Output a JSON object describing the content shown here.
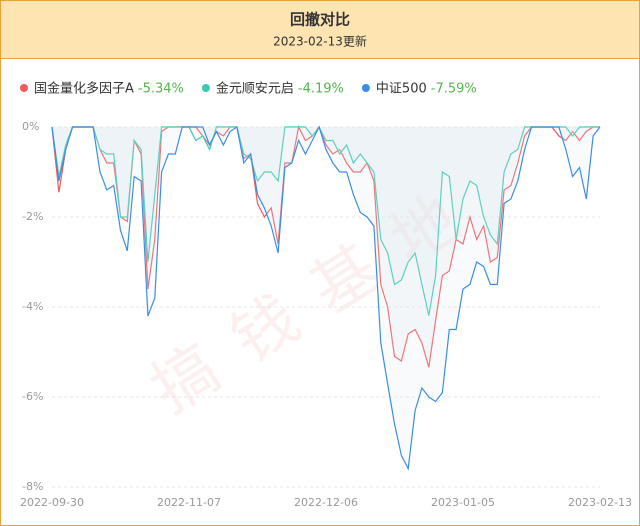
{
  "chart_data": {
    "type": "line",
    "title": "回撤对比",
    "subtitle": "2023-02-13更新",
    "watermark": "搞钱基地",
    "categories": [
      "2022-09-30",
      null,
      null,
      null,
      null,
      null,
      null,
      null,
      null,
      null,
      null,
      null,
      null,
      null,
      null,
      null,
      null,
      null,
      null,
      null,
      "2022-11-07",
      null,
      null,
      null,
      null,
      null,
      null,
      null,
      null,
      null,
      null,
      null,
      null,
      null,
      null,
      null,
      null,
      null,
      null,
      null,
      "2022-12-06",
      null,
      null,
      null,
      null,
      null,
      null,
      null,
      null,
      null,
      null,
      null,
      null,
      null,
      null,
      null,
      null,
      null,
      null,
      null,
      "2023-01-05",
      null,
      null,
      null,
      null,
      null,
      null,
      null,
      null,
      null,
      null,
      null,
      null,
      null,
      null,
      null,
      null,
      null,
      null,
      null,
      "2023-02-13"
    ],
    "ylim": [
      -8,
      0
    ],
    "yticks": [
      {
        "value": 0,
        "label": "0%"
      },
      {
        "value": -2,
        "label": "-2%"
      },
      {
        "value": -4,
        "label": "-4%"
      },
      {
        "value": -6,
        "label": "-6%"
      },
      {
        "value": -8,
        "label": "-8%"
      }
    ],
    "grid": true,
    "series": [
      {
        "name": "国金量化多因子A",
        "legend_value": "-5.34%",
        "color": "#f0585a",
        "values": [
          0,
          -1.45,
          -0.5,
          0,
          0,
          0,
          0,
          -0.5,
          -0.8,
          -0.8,
          -2.0,
          -2.1,
          -0.3,
          -0.6,
          -3.6,
          -2.5,
          -0.1,
          0,
          0,
          0,
          0,
          0,
          -0.2,
          -0.4,
          -0.1,
          -0.2,
          0,
          0,
          -0.7,
          -0.6,
          -1.7,
          -2.0,
          -1.8,
          -2.6,
          -0.8,
          -0.8,
          0,
          -0.3,
          -0.2,
          0,
          -0.4,
          -0.6,
          -0.5,
          -0.8,
          -1.0,
          -1.0,
          -0.8,
          -1.2,
          -3.5,
          -4.0,
          -5.1,
          -5.2,
          -4.6,
          -4.5,
          -4.8,
          -5.34,
          -4.3,
          -3.3,
          -3.2,
          -2.5,
          -2.6,
          -2.0,
          -2.5,
          -2.2,
          -3.0,
          -2.9,
          -1.4,
          -1.3,
          -0.8,
          -0.2,
          0,
          0,
          0,
          0,
          -0.2,
          -0.3,
          -0.1,
          -0.3,
          -0.1,
          0,
          0
        ]
      },
      {
        "name": "金元顺安元启",
        "legend_value": "-4.19%",
        "color": "#3cc9b0",
        "values": [
          0,
          -1.1,
          -0.4,
          0,
          0,
          0,
          0,
          -0.5,
          -0.6,
          -0.6,
          -2.0,
          -2.0,
          -0.3,
          -0.5,
          -3.0,
          -1.5,
          0,
          0,
          0,
          0,
          0,
          -0.3,
          -0.2,
          -0.5,
          0,
          0,
          0,
          0,
          -0.6,
          -0.7,
          -1.2,
          -1.0,
          -1.0,
          -1.2,
          0,
          0,
          0,
          0,
          -0.2,
          0,
          -0.3,
          -0.3,
          -0.6,
          -0.4,
          -0.8,
          -0.6,
          -0.8,
          -1.0,
          -2.5,
          -2.8,
          -3.5,
          -3.4,
          -3.0,
          -2.8,
          -3.5,
          -4.19,
          -3.3,
          -1.0,
          -1.1,
          -2.5,
          -1.6,
          -1.2,
          -1.3,
          -2.0,
          -2.4,
          -2.6,
          -1.0,
          -0.6,
          -0.5,
          0,
          0,
          0,
          0,
          0,
          0,
          0,
          -0.2,
          0,
          0,
          0,
          0
        ]
      },
      {
        "name": "中证500",
        "legend_value": "-7.59%",
        "color": "#3a8ee6",
        "values": [
          0,
          -1.2,
          -0.5,
          0,
          0,
          0,
          0,
          -1.0,
          -1.4,
          -1.3,
          -2.3,
          -2.75,
          -1.1,
          -1.2,
          -4.2,
          -3.8,
          -1.0,
          -0.6,
          -0.6,
          0,
          0,
          0,
          0,
          -0.4,
          -0.1,
          -0.4,
          -0.1,
          0,
          -0.8,
          -0.6,
          -1.5,
          -1.8,
          -2.2,
          -2.8,
          -0.9,
          -0.8,
          -0.3,
          -0.6,
          -0.3,
          0,
          -0.5,
          -0.8,
          -1.0,
          -1.0,
          -1.5,
          -1.9,
          -2.0,
          -2.2,
          -4.8,
          -5.7,
          -6.6,
          -7.3,
          -7.59,
          -6.3,
          -5.8,
          -6.0,
          -6.1,
          -5.9,
          -4.5,
          -4.5,
          -3.6,
          -3.5,
          -3.0,
          -3.1,
          -3.5,
          -3.5,
          -1.7,
          -1.6,
          -1.2,
          -0.5,
          0,
          0,
          0,
          0,
          0,
          -0.5,
          -1.1,
          -0.9,
          -1.6,
          -0.2,
          0
        ]
      }
    ]
  }
}
